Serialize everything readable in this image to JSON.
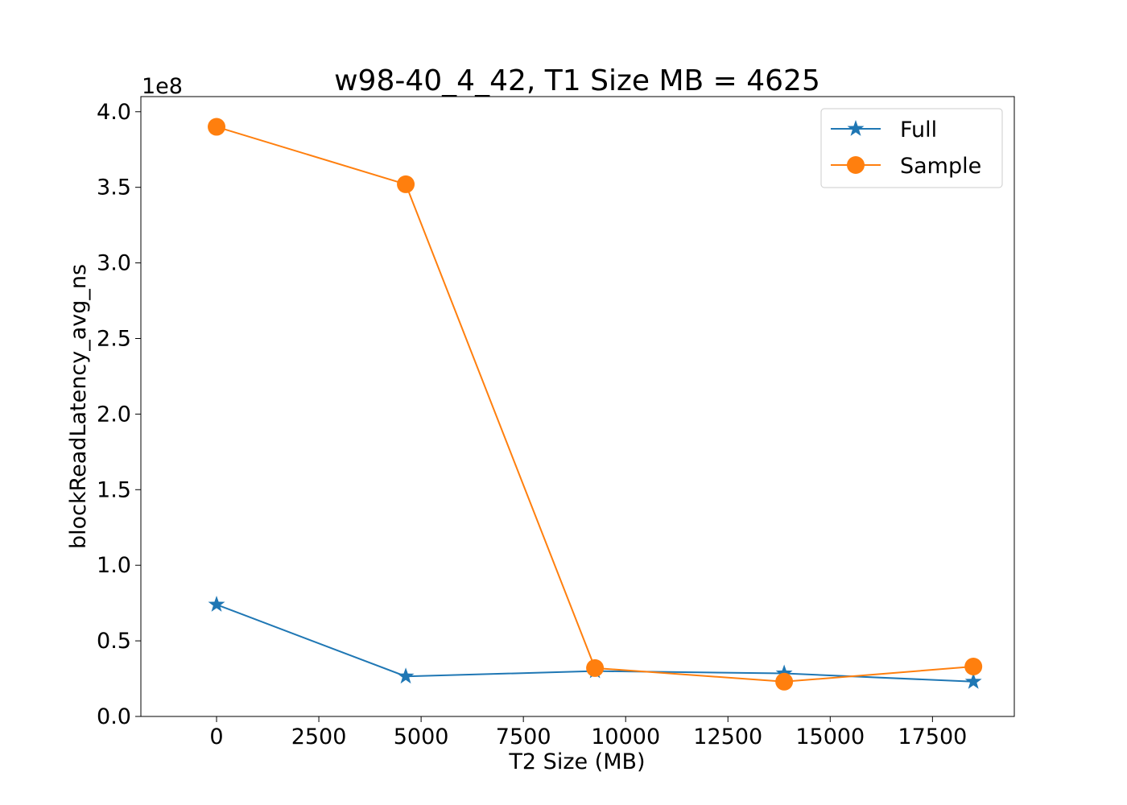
{
  "chart_data": {
    "type": "line",
    "title": "w98-40_4_42, T1 Size MB = 4625",
    "xlabel": "T2 Size (MB)",
    "ylabel": "blockReadLatency_avg_ns",
    "y_offset_label": "1e8",
    "xlim": [
      -1850,
      19500
    ],
    "ylim": [
      0,
      410000000.0
    ],
    "x_ticks": [
      0,
      2500,
      5000,
      7500,
      10000,
      12500,
      15000,
      17500
    ],
    "y_ticks": [
      0,
      50000000.0,
      100000000.0,
      150000000.0,
      200000000.0,
      250000000.0,
      300000000.0,
      350000000.0,
      400000000.0
    ],
    "y_tick_labels": [
      "0.0",
      "0.5",
      "1.0",
      "1.5",
      "2.0",
      "2.5",
      "3.0",
      "3.5",
      "4.0"
    ],
    "x": [
      0,
      4625,
      9250,
      13875,
      18500
    ],
    "series": [
      {
        "name": "Full",
        "marker": "star",
        "color": "#1f77b4",
        "values": [
          74000000.0,
          26500000.0,
          30000000.0,
          28500000.0,
          23000000.0
        ]
      },
      {
        "name": "Sample",
        "marker": "circle",
        "color": "#ff7f0e",
        "values": [
          390000000.0,
          352000000.0,
          32000000.0,
          23000000.0,
          33000000.0
        ]
      }
    ],
    "legend_position": "top-right",
    "grid": false
  }
}
